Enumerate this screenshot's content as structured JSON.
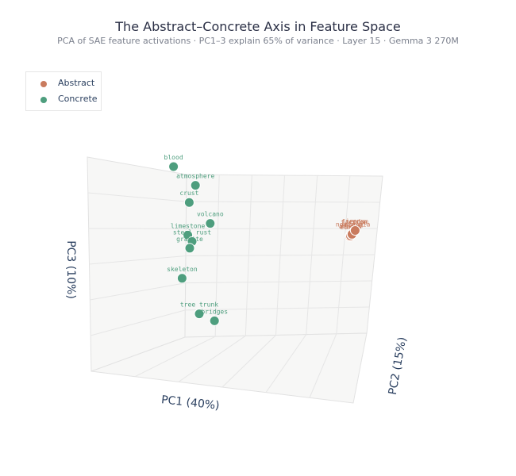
{
  "chart_data": {
    "type": "scatter",
    "projection": "3d",
    "title": "The Abstract–Concrete Axis in Feature Space",
    "subtitle": "PCA of SAE feature activations · PC1–3 explain 65% of variance · Layer 15 · Gemma 3 270M",
    "axes": {
      "x": {
        "label": "PC1 (40%)"
      },
      "y": {
        "label": "PC2 (15%)"
      },
      "z": {
        "label": "PC3 (10%)"
      }
    },
    "legend": {
      "placement": "top-left",
      "entries": [
        "Abstract",
        "Concrete"
      ]
    },
    "grid": true,
    "colors": {
      "Abstract": "#c97b5e",
      "Concrete": "#4e9e7e"
    },
    "series": [
      {
        "name": "Abstract",
        "points": [
          {
            "label": "educo",
            "x": 2.56,
            "y": -0.3,
            "z": 0.72
          },
          {
            "label": "ethics",
            "x": 2.6,
            "y": -0.45,
            "z": 0.76
          },
          {
            "label": "wisdom",
            "x": 2.64,
            "y": -0.55,
            "z": 0.82
          },
          {
            "label": "justice",
            "x": 2.66,
            "y": -0.4,
            "z": 0.88
          },
          {
            "label": "freedom",
            "x": 2.7,
            "y": -0.5,
            "z": 0.92
          },
          {
            "label": "nostalgia",
            "x": 2.68,
            "y": -0.62,
            "z": 0.86
          },
          {
            "label": "hope",
            "x": 2.62,
            "y": -0.38,
            "z": 0.8
          },
          {
            "label": "irony",
            "x": 2.72,
            "y": -0.58,
            "z": 0.95
          }
        ]
      },
      {
        "name": "Concrete",
        "points": [
          {
            "label": "blood",
            "x": -1.14,
            "y": -0.3,
            "z": 2.92
          },
          {
            "label": "atmosphere",
            "x": -0.68,
            "y": -0.3,
            "z": 2.33
          },
          {
            "label": "crust",
            "x": -0.81,
            "y": -0.3,
            "z": 1.79
          },
          {
            "label": "volcano",
            "x": -0.37,
            "y": -0.3,
            "z": 1.13
          },
          {
            "label": "limestone",
            "x": -0.84,
            "y": -0.3,
            "z": 0.76
          },
          {
            "label": "steel rust",
            "x": -0.75,
            "y": -0.3,
            "z": 0.56
          },
          {
            "label": "granite",
            "x": -0.8,
            "y": -0.3,
            "z": 0.35
          },
          {
            "label": "skeleton",
            "x": -0.96,
            "y": -0.3,
            "z": -0.6
          },
          {
            "label": "tree trunk",
            "x": -0.6,
            "y": -0.3,
            "z": -1.72
          },
          {
            "label": "bridges",
            "x": -0.28,
            "y": -0.3,
            "z": -1.94
          }
        ]
      }
    ]
  }
}
